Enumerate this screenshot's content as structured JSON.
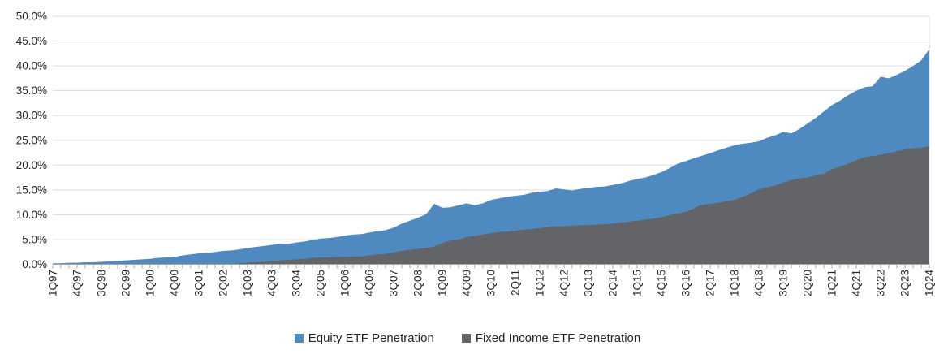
{
  "chart_data": {
    "type": "area",
    "mode": "overlay",
    "title": "",
    "xlabel": "",
    "ylabel": "",
    "ylim": [
      0,
      50
    ],
    "y_tick_step": 5,
    "y_ticks": [
      "0.0%",
      "5.0%",
      "10.0%",
      "15.0%",
      "20.0%",
      "25.0%",
      "30.0%",
      "35.0%",
      "40.0%",
      "45.0%",
      "50.0%"
    ],
    "grid": "horizontal",
    "legend_position": "bottom-center",
    "tick_every": 3,
    "x_tick_labels": [
      "1Q97",
      "4Q97",
      "3Q98",
      "2Q99",
      "1Q00",
      "4Q00",
      "3Q01",
      "2Q02",
      "1Q03",
      "4Q03",
      "3Q04",
      "2Q05",
      "1Q06",
      "4Q06",
      "3Q07",
      "2Q08",
      "1Q09",
      "4Q09",
      "3Q10",
      "2Q11",
      "1Q12",
      "4Q12",
      "3Q13",
      "2Q14",
      "1Q15",
      "4Q15",
      "3Q16",
      "2Q17",
      "1Q18",
      "4Q18",
      "3Q19",
      "2Q20",
      "1Q21",
      "4Q21",
      "3Q22",
      "2Q23",
      "1Q24"
    ],
    "x_range_note": "quarterly points from 1Q97 to 1Q24",
    "series": [
      {
        "name": "Equity ETF Penetration",
        "color": "#4E8ABF",
        "values": [
          0.2,
          0.2,
          0.3,
          0.3,
          0.4,
          0.4,
          0.5,
          0.6,
          0.7,
          0.8,
          0.9,
          1.0,
          1.1,
          1.3,
          1.4,
          1.5,
          1.8,
          2.0,
          2.2,
          2.3,
          2.5,
          2.7,
          2.8,
          3.0,
          3.3,
          3.5,
          3.7,
          3.9,
          4.2,
          4.1,
          4.4,
          4.6,
          4.9,
          5.2,
          5.3,
          5.5,
          5.8,
          6.0,
          6.1,
          6.4,
          6.7,
          6.9,
          7.4,
          8.2,
          8.8,
          9.4,
          10.1,
          12.2,
          11.4,
          11.5,
          11.9,
          12.3,
          11.9,
          12.3,
          13.0,
          13.3,
          13.6,
          13.8,
          14.0,
          14.4,
          14.6,
          14.8,
          15.3,
          15.1,
          14.9,
          15.2,
          15.4,
          15.6,
          15.7,
          16.0,
          16.3,
          16.8,
          17.2,
          17.5,
          18.0,
          18.6,
          19.4,
          20.3,
          20.8,
          21.4,
          21.9,
          22.4,
          23.0,
          23.5,
          24.0,
          24.3,
          24.5,
          24.8,
          25.5,
          26.0,
          26.7,
          26.4,
          27.3,
          28.4,
          29.5,
          30.8,
          32.1,
          33.0,
          34.1,
          35.0,
          35.7,
          35.9,
          37.8,
          37.5,
          38.2,
          39.0,
          40.0,
          41.1,
          43.4
        ]
      },
      {
        "name": "Fixed Income ETF Penetration",
        "color": "#636467",
        "values": [
          0,
          0,
          0,
          0,
          0,
          0,
          0,
          0,
          0,
          0,
          0,
          0,
          0,
          0,
          0,
          0,
          0,
          0,
          0,
          0,
          0,
          0,
          0.1,
          0.2,
          0.3,
          0.4,
          0.5,
          0.7,
          0.8,
          0.9,
          1.0,
          1.1,
          1.3,
          1.4,
          1.4,
          1.5,
          1.5,
          1.6,
          1.6,
          1.8,
          2.0,
          2.1,
          2.4,
          2.7,
          2.9,
          3.1,
          3.3,
          3.6,
          4.3,
          4.8,
          5.0,
          5.5,
          5.7,
          6.0,
          6.3,
          6.5,
          6.6,
          6.8,
          7.0,
          7.1,
          7.3,
          7.5,
          7.7,
          7.7,
          7.8,
          7.9,
          7.9,
          8.0,
          8.1,
          8.2,
          8.4,
          8.6,
          8.8,
          9.0,
          9.2,
          9.5,
          9.9,
          10.3,
          10.6,
          11.3,
          12.0,
          12.2,
          12.4,
          12.7,
          13.0,
          13.6,
          14.3,
          15.1,
          15.5,
          15.9,
          16.5,
          17.0,
          17.3,
          17.5,
          17.9,
          18.3,
          19.2,
          19.7,
          20.3,
          21.0,
          21.6,
          21.8,
          22.1,
          22.4,
          22.8,
          23.2,
          23.4,
          23.5,
          23.8
        ]
      }
    ],
    "colors": {
      "gridline": "#DCDCDC",
      "axis": "#A6A6A6",
      "tick": "#A6A6A6",
      "text": "#262626"
    }
  }
}
